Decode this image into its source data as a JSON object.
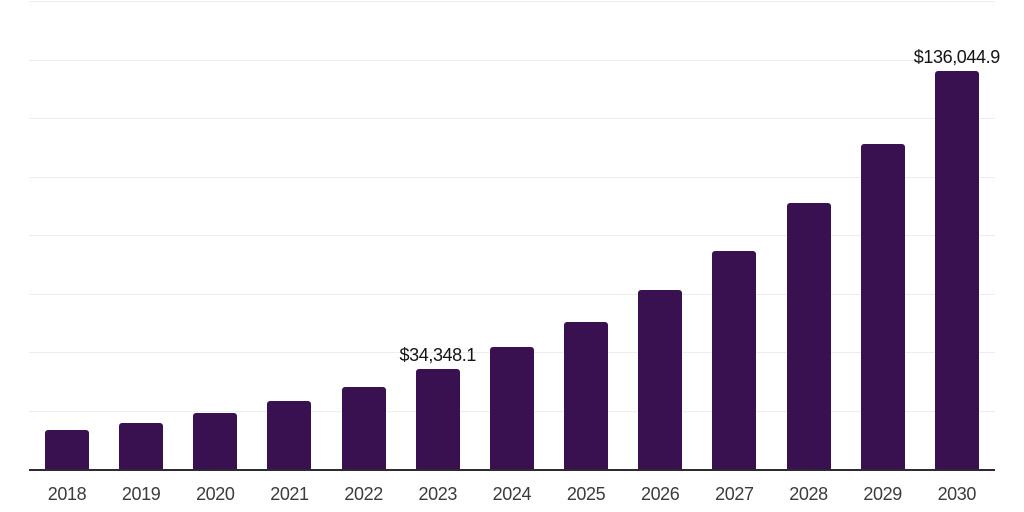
{
  "colors": {
    "background": "#FFFFFF",
    "bar": "#391151",
    "gridline": "#EDEDED",
    "axis_line": "#2B2B30",
    "value_label_text": "#141414",
    "axis_label_text": "#3C3C3C"
  },
  "chart_data": {
    "type": "bar",
    "title": "",
    "xlabel": "",
    "ylabel": "",
    "categories": [
      "2018",
      "2019",
      "2020",
      "2021",
      "2022",
      "2023",
      "2024",
      "2025",
      "2026",
      "2027",
      "2028",
      "2029",
      "2030"
    ],
    "values": [
      13200,
      15800,
      19200,
      23200,
      27900,
      34348.1,
      41700,
      50400,
      61300,
      74600,
      90900,
      111200,
      136044.9
    ],
    "value_labels": {
      "2023": "$34,348.1",
      "2030": "$136,044.9"
    },
    "ylim": [
      0,
      160000
    ],
    "gridline_step": 20000,
    "grid": "horizontal-only",
    "y_axis_tick_labels": "none",
    "legend": "none",
    "bar_corner_radius_px": 3
  }
}
